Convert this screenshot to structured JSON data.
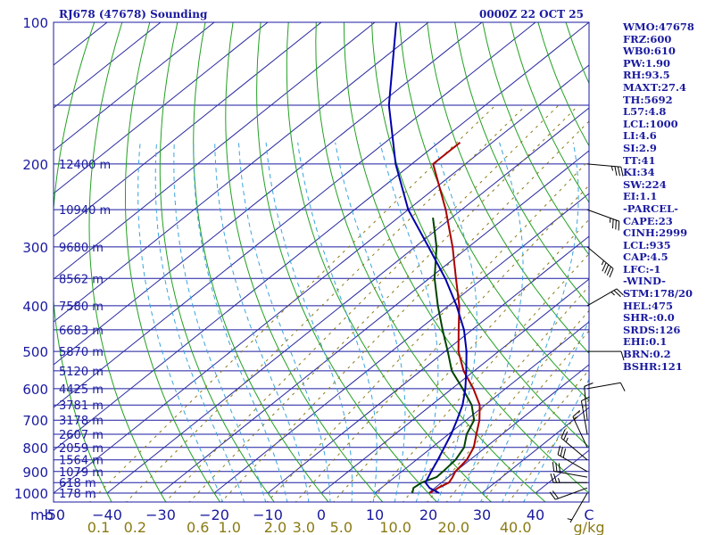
{
  "colors": {
    "frame": "#1a1aa0",
    "isobar": "#1a1aa0",
    "isotherm": "#2a2aa0",
    "dry_adiabat": "#22a022",
    "moist_adiabat": "#3aa4dc",
    "mixing_ratio": "#8a7a14",
    "temperature": "#aa0000",
    "dewpoint": "#004400",
    "parcel": "#0000aa",
    "wind_barb": "#000000",
    "stats_text": "#1a1aa0",
    "mixing_label": "#8a7a14"
  },
  "stats": [
    "WMO:47678",
    "FRZ:600",
    "WB0:610",
    "PW:1.90",
    "RH:93.5",
    "MAXT:27.4",
    "TH:5692",
    "L57:4.8",
    "LCL:1000",
    "LI:4.6",
    "SI:2.9",
    "TT:41",
    "KI:34",
    "SW:224",
    "EI:1.1",
    "-PARCEL-",
    "CAPE:23",
    "CINH:2999",
    "LCL:935",
    "CAP:4.5",
    "LFC:-1",
    "-WIND-",
    "STM:178/20",
    "HEL:475",
    "SHR-:0.0",
    "SRDS:126",
    "EHI:0.1",
    "BRN:0.2",
    "BSHR:121"
  ],
  "chart_data": {
    "type": "skew-t",
    "title_left": "RJ678 (47678) Sounding",
    "title_right": "0000Z 22 OCT 25",
    "pressure_unit_label": "mb",
    "mixing_ratio_unit_label": "g/kg",
    "pressure_range": [
      1000,
      100
    ],
    "temp_range": [
      -50,
      50
    ],
    "pressure_ticks": [
      {
        "p": 100,
        "label": "100"
      },
      {
        "p": 200,
        "label": "200"
      },
      {
        "p": 300,
        "label": "300"
      },
      {
        "p": 400,
        "label": "400"
      },
      {
        "p": 500,
        "label": "500"
      },
      {
        "p": 600,
        "label": "600"
      },
      {
        "p": 700,
        "label": "700"
      },
      {
        "p": 800,
        "label": "800"
      },
      {
        "p": 900,
        "label": "900"
      },
      {
        "p": 1000,
        "label": "1000"
      }
    ],
    "height_labels": [
      {
        "p": 200,
        "label": "12400 m"
      },
      {
        "p": 250,
        "label": "10940 m"
      },
      {
        "p": 300,
        "label": "9680 m"
      },
      {
        "p": 350,
        "label": "8562 m"
      },
      {
        "p": 400,
        "label": "7580 m"
      },
      {
        "p": 450,
        "label": "6683 m"
      },
      {
        "p": 500,
        "label": "5870 m"
      },
      {
        "p": 550,
        "label": "5120 m"
      },
      {
        "p": 600,
        "label": "4425 m"
      },
      {
        "p": 650,
        "label": "3781 m"
      },
      {
        "p": 700,
        "label": "3178 m"
      },
      {
        "p": 750,
        "label": "2607 m"
      },
      {
        "p": 800,
        "label": "2059 m"
      },
      {
        "p": 850,
        "label": "1564 m"
      },
      {
        "p": 900,
        "label": "1079 m"
      },
      {
        "p": 950,
        "label": "618 m"
      },
      {
        "p": 1000,
        "label": "178 m"
      }
    ],
    "temp_ticks": [
      {
        "t": -50,
        "label": "-50"
      },
      {
        "t": -40,
        "label": "−40"
      },
      {
        "t": -30,
        "label": "−30"
      },
      {
        "t": -20,
        "label": "−20"
      },
      {
        "t": -10,
        "label": "−10"
      },
      {
        "t": 0,
        "label": "0"
      },
      {
        "t": 10,
        "label": "10"
      },
      {
        "t": 20,
        "label": "20"
      },
      {
        "t": 30,
        "label": "30"
      },
      {
        "t": 40,
        "label": "40"
      },
      {
        "t": 50,
        "label": "C"
      }
    ],
    "mixing_ratio_labels": [
      {
        "w": 0.1,
        "label": "0.1"
      },
      {
        "w": 0.2,
        "label": "0.2"
      },
      {
        "w": 0.6,
        "label": "0.6"
      },
      {
        "w": 1.0,
        "label": "1.0"
      },
      {
        "w": 2.0,
        "label": "2.0"
      },
      {
        "w": 3.0,
        "label": "3.0"
      },
      {
        "w": 5.0,
        "label": "5.0"
      },
      {
        "w": 10.0,
        "label": "10.0"
      },
      {
        "w": 20.0,
        "label": "20.0"
      },
      {
        "w": 40.0,
        "label": "40.0"
      }
    ],
    "mixing_ratio_lines": [
      0.1,
      0.2,
      0.4,
      0.6,
      1,
      2,
      3,
      5,
      8,
      12,
      16,
      20,
      30,
      40
    ],
    "series": [
      {
        "name": "Temperature",
        "color": "#aa0000",
        "points": [
          {
            "p": 1000,
            "t": 20.2
          },
          {
            "p": 975,
            "t": 20.6
          },
          {
            "p": 950,
            "t": 21.4
          },
          {
            "p": 925,
            "t": 20.8
          },
          {
            "p": 900,
            "t": 20.0
          },
          {
            "p": 850,
            "t": 19.4
          },
          {
            "p": 800,
            "t": 17.8
          },
          {
            "p": 750,
            "t": 15.2
          },
          {
            "p": 700,
            "t": 12.5
          },
          {
            "p": 650,
            "t": 9.0
          },
          {
            "p": 600,
            "t": 4.0
          },
          {
            "p": 550,
            "t": -2.0
          },
          {
            "p": 500,
            "t": -7.5
          },
          {
            "p": 450,
            "t": -12.5
          },
          {
            "p": 400,
            "t": -18.0
          },
          {
            "p": 350,
            "t": -25.0
          },
          {
            "p": 300,
            "t": -33.0
          },
          {
            "p": 250,
            "t": -43.0
          },
          {
            "p": 200,
            "t": -56.0
          },
          {
            "p": 180,
            "t": -56.0
          }
        ]
      },
      {
        "name": "Dewpoint",
        "color": "#004400",
        "points": [
          {
            "p": 1000,
            "t": 17.0
          },
          {
            "p": 975,
            "t": 16.0
          },
          {
            "p": 950,
            "t": 16.3
          },
          {
            "p": 925,
            "t": 17.8
          },
          {
            "p": 900,
            "t": 17.7
          },
          {
            "p": 850,
            "t": 17.3
          },
          {
            "p": 800,
            "t": 16.0
          },
          {
            "p": 750,
            "t": 13.4
          },
          {
            "p": 700,
            "t": 11.5
          },
          {
            "p": 650,
            "t": 7.5
          },
          {
            "p": 600,
            "t": 2.0
          },
          {
            "p": 550,
            "t": -4.2
          },
          {
            "p": 500,
            "t": -9.5
          },
          {
            "p": 450,
            "t": -15.5
          },
          {
            "p": 400,
            "t": -22.0
          },
          {
            "p": 350,
            "t": -29.0
          },
          {
            "p": 300,
            "t": -36.0
          },
          {
            "p": 260,
            "t": -43.5
          }
        ]
      },
      {
        "name": "Parcel",
        "color": "#0000aa",
        "points": [
          {
            "p": 1000,
            "t": 22.0
          },
          {
            "p": 975,
            "t": 19.0
          },
          {
            "p": 950,
            "t": 17.0
          },
          {
            "p": 900,
            "t": 15.5
          },
          {
            "p": 850,
            "t": 14.0
          },
          {
            "p": 800,
            "t": 12.3
          },
          {
            "p": 750,
            "t": 10.5
          },
          {
            "p": 700,
            "t": 8.3
          },
          {
            "p": 650,
            "t": 5.8
          },
          {
            "p": 600,
            "t": 2.5
          },
          {
            "p": 550,
            "t": -1.5
          },
          {
            "p": 500,
            "t": -6.0
          },
          {
            "p": 450,
            "t": -11.5
          },
          {
            "p": 400,
            "t": -18.5
          },
          {
            "p": 350,
            "t": -27.0
          },
          {
            "p": 300,
            "t": -37.5
          },
          {
            "p": 250,
            "t": -50.0
          },
          {
            "p": 200,
            "t": -63.0
          },
          {
            "p": 150,
            "t": -78.0
          },
          {
            "p": 100,
            "t": -96.0
          }
        ]
      }
    ],
    "wind_barbs": [
      {
        "p": 1000,
        "dir": 210,
        "speed": 5
      },
      {
        "p": 975,
        "dir": 250,
        "speed": 20
      },
      {
        "p": 950,
        "dir": 270,
        "speed": 25
      },
      {
        "p": 925,
        "dir": 280,
        "speed": 30
      },
      {
        "p": 900,
        "dir": 300,
        "speed": 30
      },
      {
        "p": 850,
        "dir": 310,
        "speed": 25
      },
      {
        "p": 800,
        "dir": 335,
        "speed": 15
      },
      {
        "p": 750,
        "dir": 350,
        "speed": 10
      },
      {
        "p": 700,
        "dir": 355,
        "speed": 10
      },
      {
        "p": 600,
        "dir": 80,
        "speed": 10
      },
      {
        "p": 500,
        "dir": 90,
        "speed": 10
      },
      {
        "p": 400,
        "dir": 60,
        "speed": 25
      },
      {
        "p": 300,
        "dir": 130,
        "speed": 45
      },
      {
        "p": 250,
        "dir": 110,
        "speed": 35
      },
      {
        "p": 200,
        "dir": 95,
        "speed": 35
      }
    ]
  }
}
